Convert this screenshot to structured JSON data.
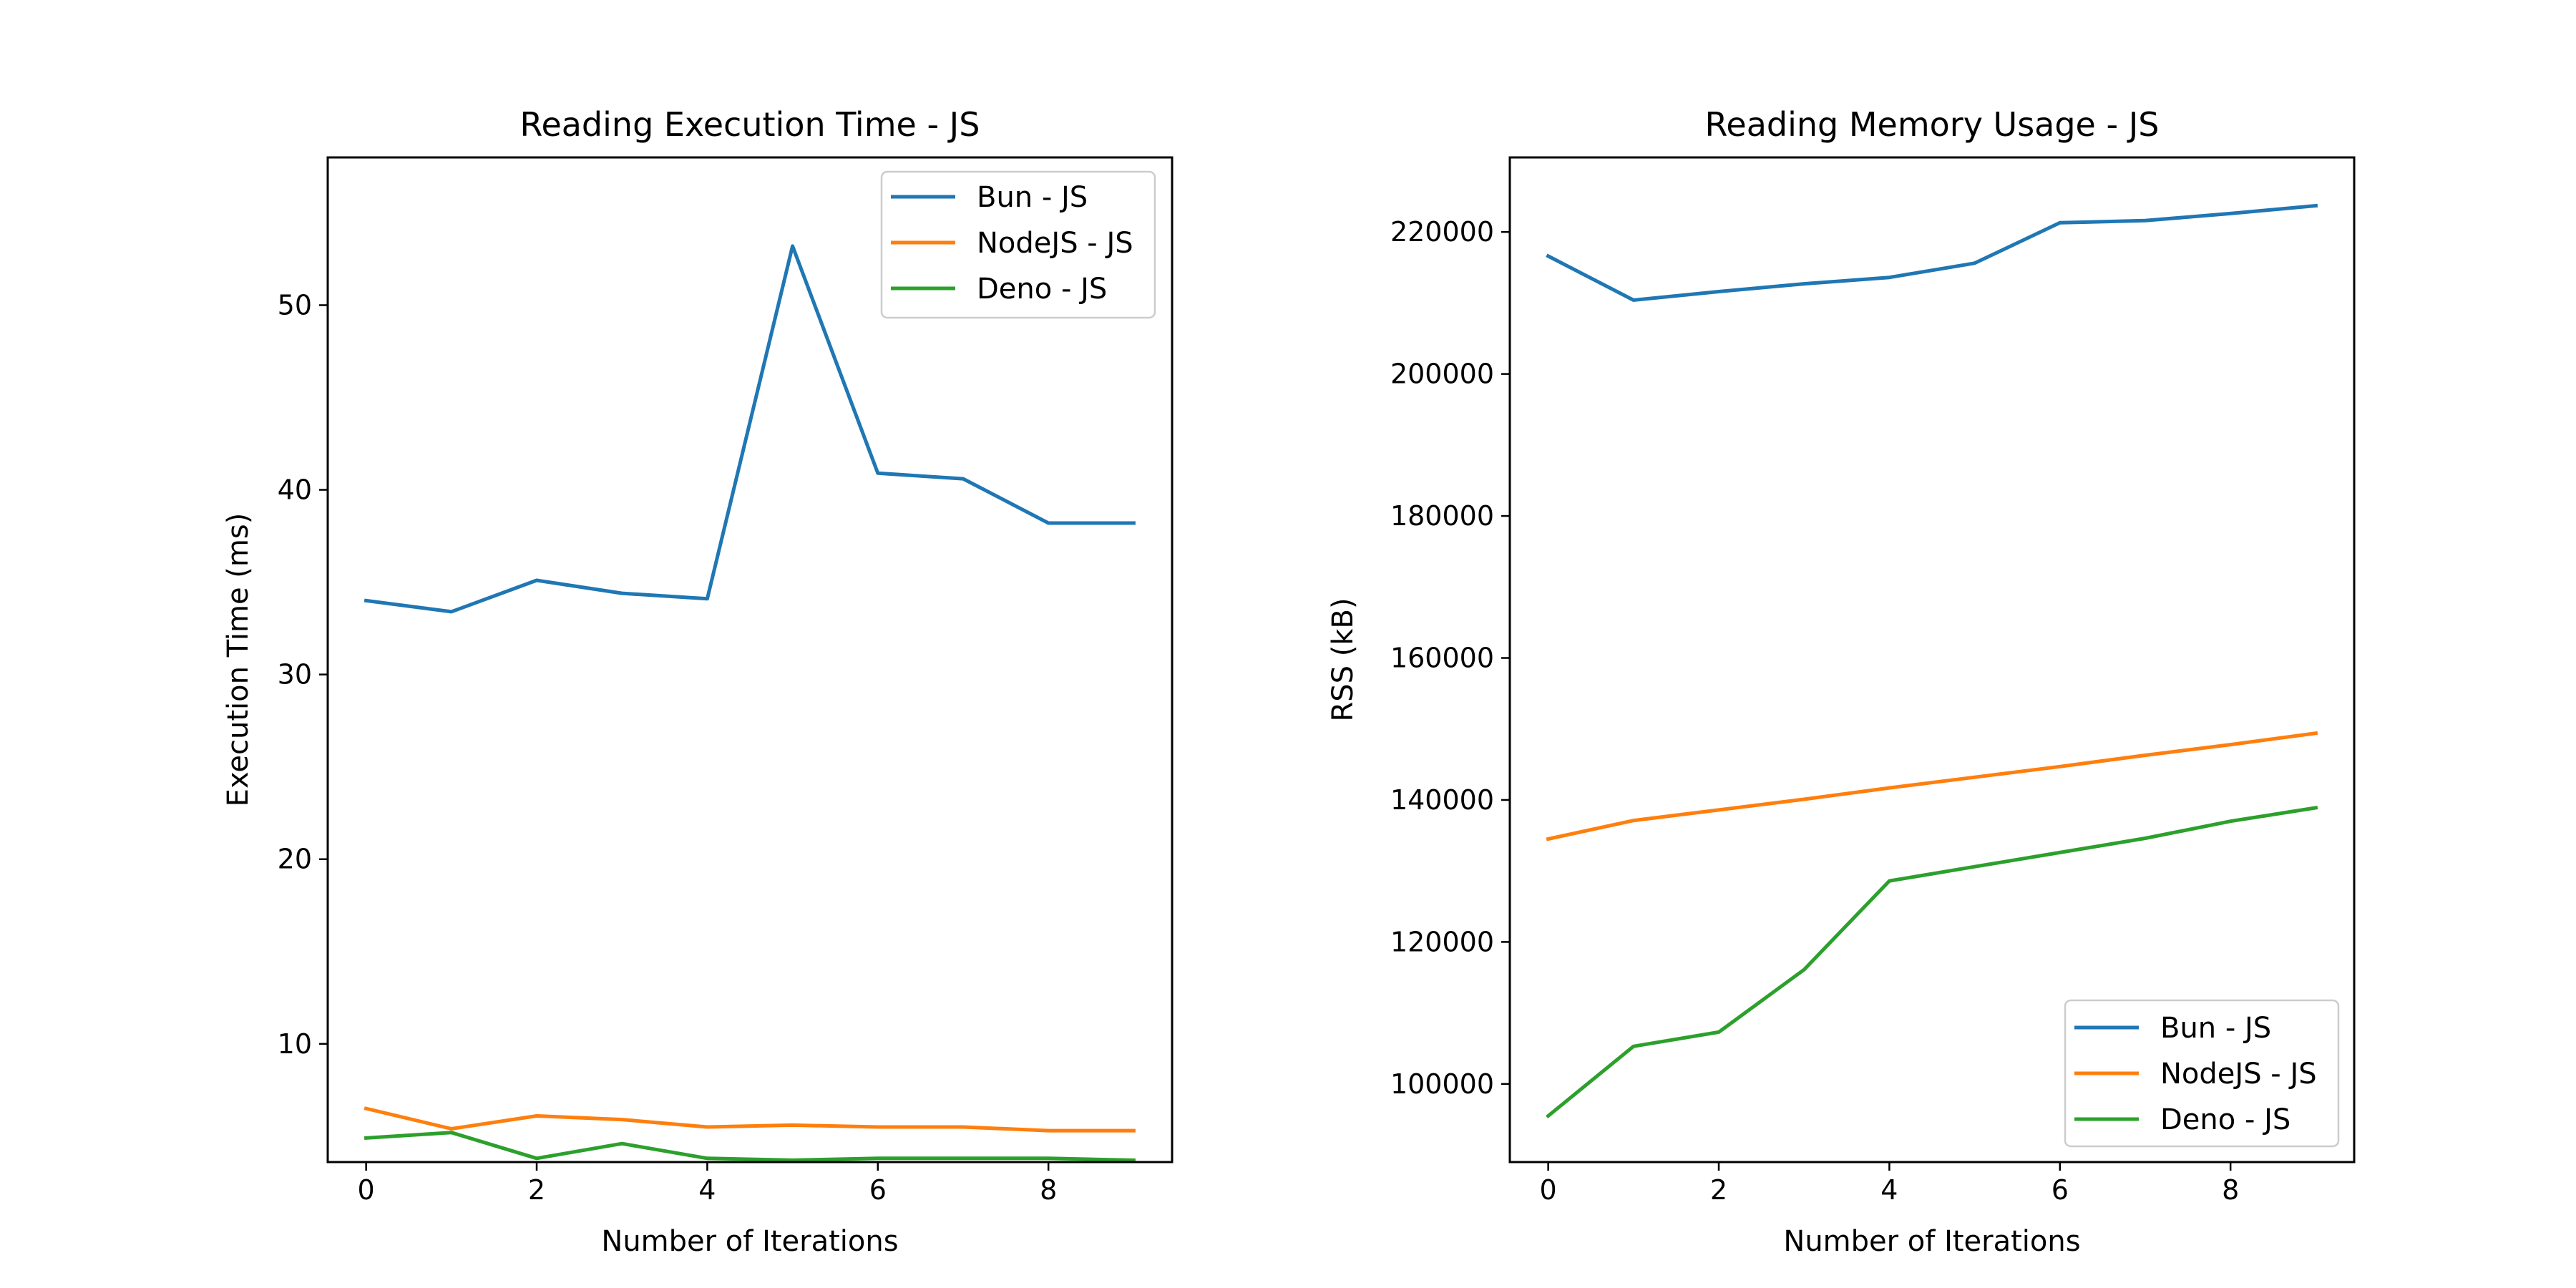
{
  "chart_data": [
    {
      "type": "line",
      "title": "Reading Execution Time - JS",
      "xlabel": "Number of Iterations",
      "ylabel": "Execution Time (ms)",
      "x": [
        0,
        1,
        2,
        3,
        4,
        5,
        6,
        7,
        8,
        9
      ],
      "xlim": [
        -0.45,
        9.45
      ],
      "ylim": [
        3.6,
        58.0
      ],
      "xticks": [
        0,
        2,
        4,
        6,
        8
      ],
      "yticks": [
        10,
        20,
        30,
        40,
        50
      ],
      "grid": false,
      "legend_position": "top-right",
      "series": [
        {
          "name": "Bun - JS",
          "color": "#1f77b4",
          "values": [
            34.0,
            33.4,
            35.1,
            34.4,
            34.1,
            53.2,
            40.9,
            40.6,
            38.2,
            38.2
          ]
        },
        {
          "name": "NodeJS - JS",
          "color": "#ff7f0e",
          "values": [
            6.5,
            5.4,
            6.1,
            5.9,
            5.5,
            5.6,
            5.5,
            5.5,
            5.3,
            5.3
          ]
        },
        {
          "name": "Deno - JS",
          "color": "#2ca02c",
          "values": [
            4.9,
            5.2,
            3.8,
            4.6,
            3.8,
            3.7,
            3.8,
            3.8,
            3.8,
            3.7
          ]
        }
      ]
    },
    {
      "type": "line",
      "title": "Reading Memory Usage - JS",
      "xlabel": "Number of Iterations",
      "ylabel": "RSS (kB)",
      "x": [
        0,
        1,
        2,
        3,
        4,
        5,
        6,
        7,
        8,
        9
      ],
      "xlim": [
        -0.45,
        9.45
      ],
      "ylim": [
        89000,
        230500
      ],
      "xticks": [
        0,
        2,
        4,
        6,
        8
      ],
      "yticks": [
        100000,
        120000,
        140000,
        160000,
        180000,
        200000,
        220000
      ],
      "grid": false,
      "legend_position": "bottom-right",
      "series": [
        {
          "name": "Bun - JS",
          "color": "#1f77b4",
          "values": [
            216600,
            210400,
            211600,
            212700,
            213600,
            215600,
            221300,
            221600,
            222600,
            223700
          ]
        },
        {
          "name": "NodeJS - JS",
          "color": "#ff7f0e",
          "values": [
            134500,
            137100,
            138600,
            140100,
            141700,
            143200,
            144700,
            146300,
            147800,
            149400
          ]
        },
        {
          "name": "Deno - JS",
          "color": "#2ca02c",
          "values": [
            95500,
            105300,
            107300,
            116100,
            128600,
            130600,
            132600,
            134600,
            137000,
            138900
          ]
        }
      ]
    }
  ]
}
